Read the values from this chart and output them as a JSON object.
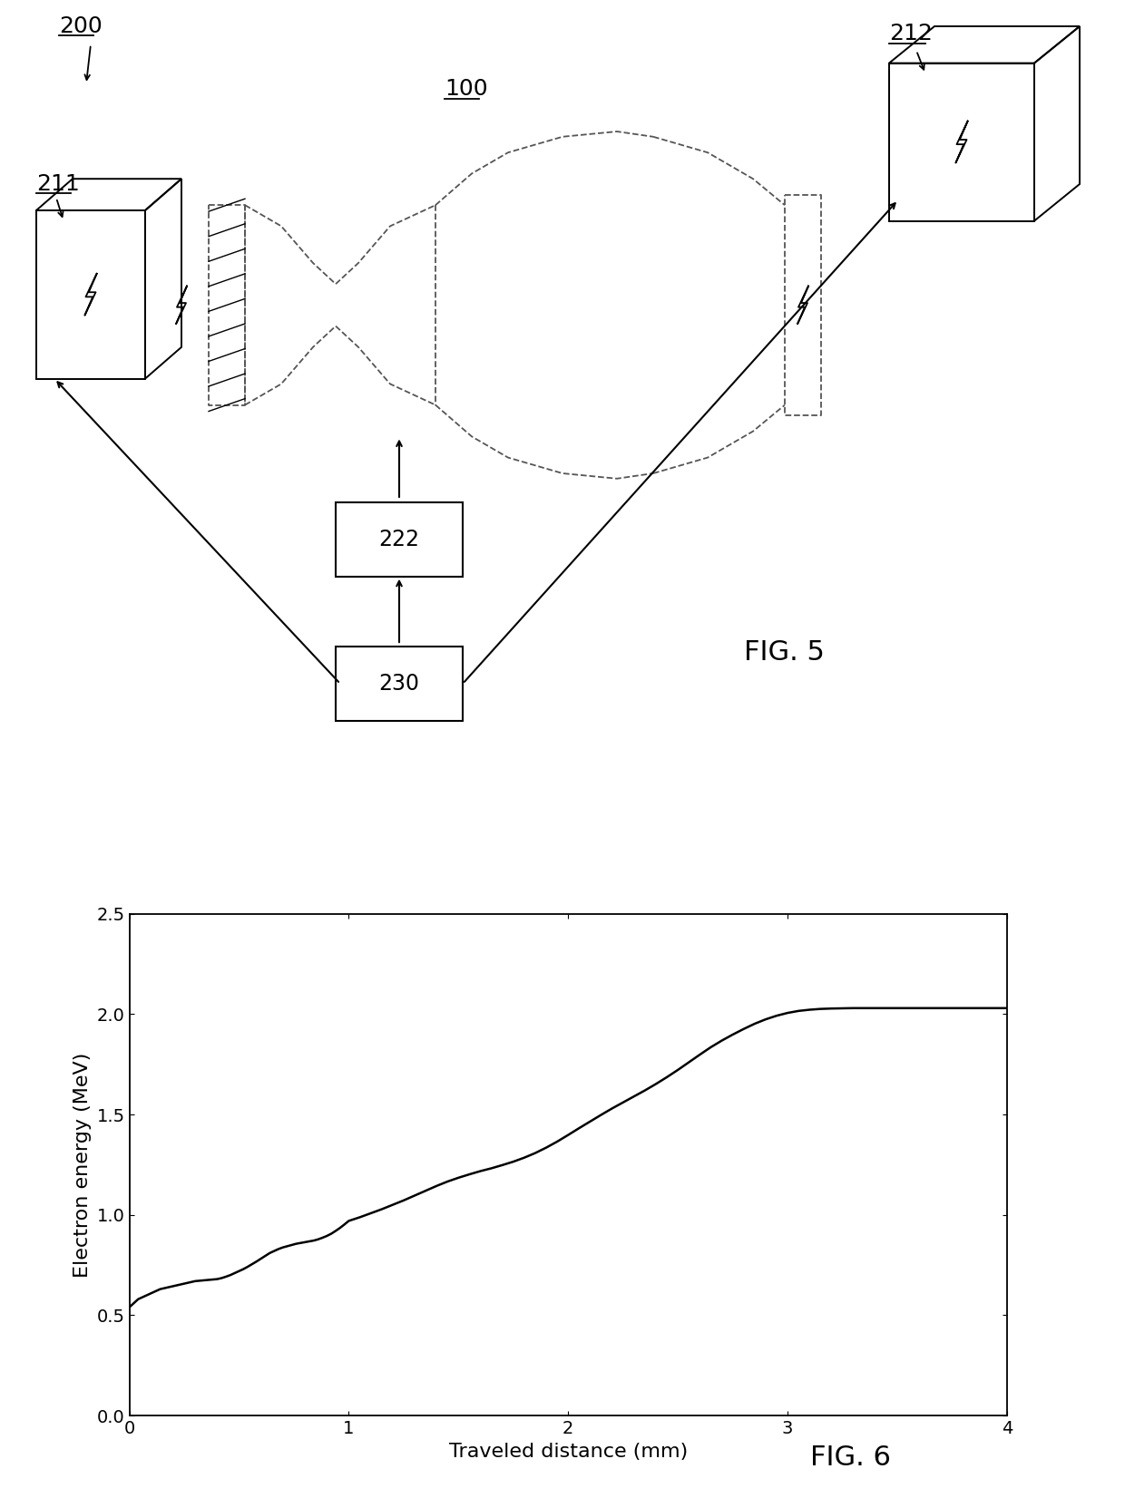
{
  "fig_width": 12.4,
  "fig_height": 16.52,
  "background_color": "#ffffff",
  "top_diagram": {
    "label_200": "200",
    "label_211": "211",
    "label_212": "212",
    "label_100": "100",
    "label_222": "222",
    "label_230": "230",
    "fig_label": "FIG. 5"
  },
  "graph": {
    "xlabel": "Traveled distance (mm)",
    "ylabel": "Electron energy (MeV)",
    "xlim": [
      0,
      4
    ],
    "ylim": [
      0,
      2.5
    ],
    "xticks": [
      0,
      1,
      2,
      3,
      4
    ],
    "yticks": [
      0,
      0.5,
      1,
      1.5,
      2,
      2.5
    ],
    "line_color": "#000000",
    "line_width": 1.8,
    "fig_label": "FIG. 6",
    "x_data": [
      0.0,
      0.02,
      0.04,
      0.06,
      0.08,
      0.1,
      0.12,
      0.14,
      0.16,
      0.18,
      0.2,
      0.22,
      0.24,
      0.26,
      0.28,
      0.3,
      0.32,
      0.34,
      0.36,
      0.38,
      0.4,
      0.42,
      0.44,
      0.46,
      0.48,
      0.5,
      0.52,
      0.54,
      0.56,
      0.58,
      0.6,
      0.62,
      0.64,
      0.66,
      0.68,
      0.7,
      0.72,
      0.74,
      0.76,
      0.78,
      0.8,
      0.82,
      0.84,
      0.86,
      0.88,
      0.9,
      0.92,
      0.94,
      0.96,
      0.98,
      1.0,
      1.05,
      1.1,
      1.15,
      1.2,
      1.25,
      1.3,
      1.35,
      1.4,
      1.45,
      1.5,
      1.55,
      1.6,
      1.65,
      1.7,
      1.75,
      1.8,
      1.85,
      1.9,
      1.95,
      2.0,
      2.05,
      2.1,
      2.15,
      2.2,
      2.25,
      2.3,
      2.35,
      2.4,
      2.45,
      2.5,
      2.55,
      2.6,
      2.65,
      2.7,
      2.75,
      2.8,
      2.85,
      2.9,
      2.95,
      3.0,
      3.05,
      3.1,
      3.15,
      3.2,
      3.3,
      3.4,
      3.5,
      3.6,
      3.7,
      3.8,
      3.9,
      4.0
    ],
    "y_data": [
      0.54,
      0.56,
      0.58,
      0.59,
      0.6,
      0.61,
      0.62,
      0.63,
      0.635,
      0.64,
      0.645,
      0.65,
      0.655,
      0.66,
      0.665,
      0.67,
      0.672,
      0.674,
      0.676,
      0.678,
      0.68,
      0.685,
      0.692,
      0.7,
      0.71,
      0.72,
      0.73,
      0.742,
      0.755,
      0.768,
      0.782,
      0.796,
      0.81,
      0.82,
      0.83,
      0.838,
      0.844,
      0.85,
      0.856,
      0.86,
      0.864,
      0.868,
      0.872,
      0.878,
      0.886,
      0.895,
      0.906,
      0.92,
      0.935,
      0.952,
      0.97,
      0.988,
      1.008,
      1.028,
      1.05,
      1.072,
      1.096,
      1.12,
      1.144,
      1.166,
      1.185,
      1.202,
      1.218,
      1.232,
      1.248,
      1.265,
      1.285,
      1.308,
      1.335,
      1.365,
      1.398,
      1.432,
      1.465,
      1.498,
      1.53,
      1.56,
      1.59,
      1.62,
      1.652,
      1.686,
      1.722,
      1.76,
      1.798,
      1.835,
      1.868,
      1.898,
      1.926,
      1.952,
      1.974,
      1.992,
      2.006,
      2.016,
      2.022,
      2.026,
      2.028,
      2.03,
      2.03,
      2.03,
      2.03,
      2.03,
      2.03,
      2.03,
      2.03
    ]
  }
}
